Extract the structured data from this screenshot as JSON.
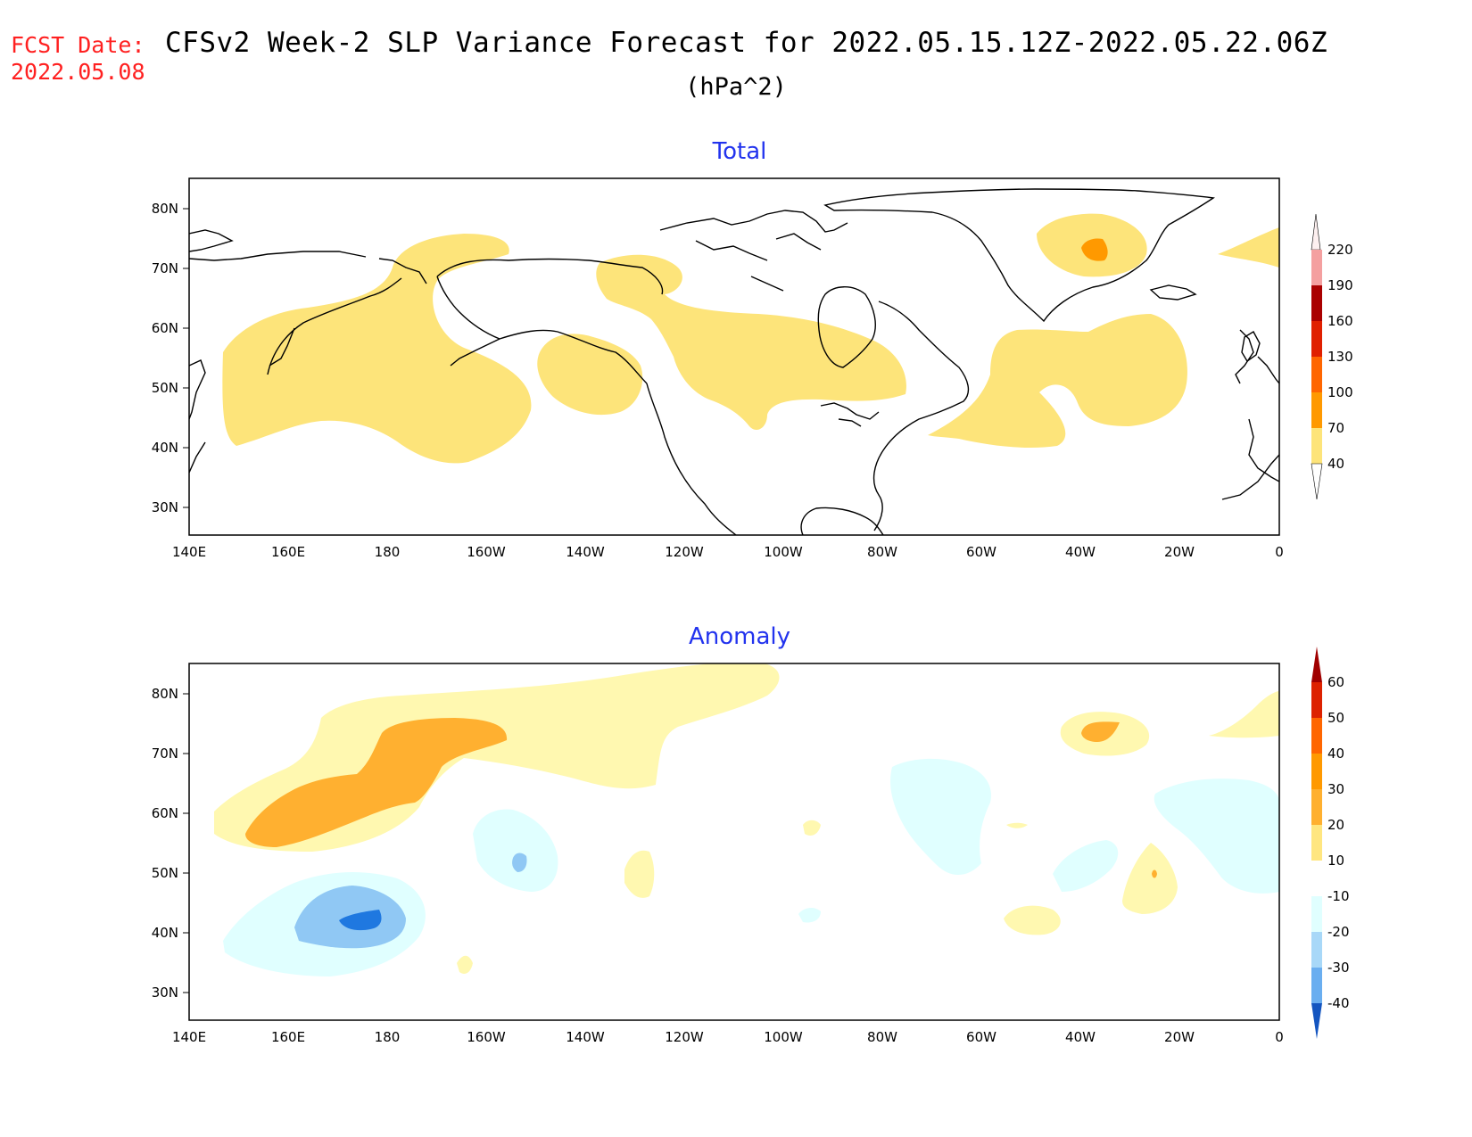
{
  "header": {
    "fcst_label": "FCST Date:",
    "fcst_date": "2022.05.08",
    "title": "CFSv2 Week-2 SLP Variance Forecast for 2022.05.15.12Z-2022.05.22.06Z",
    "units": "(hPa^2)"
  },
  "axes": {
    "lat_ticks": [
      "80N",
      "70N",
      "60N",
      "50N",
      "40N",
      "30N"
    ],
    "lon_ticks": [
      "140E",
      "160E",
      "180",
      "160W",
      "140W",
      "120W",
      "100W",
      "80W",
      "60W",
      "40W",
      "20W",
      "0"
    ]
  },
  "panels": [
    {
      "title": "Total",
      "colorbar": {
        "labels": [
          "220",
          "190",
          "160",
          "130",
          "100",
          "70",
          "40"
        ],
        "colors": [
          "#fbe0e0",
          "#f4a0a0",
          "#aa0000",
          "#e02000",
          "#ff6600",
          "#ff9900",
          "#fde47a"
        ]
      },
      "shading": [
        {
          "level": "40-70",
          "color": "#fde47a"
        },
        {
          "level": "70-100",
          "color": "#ff9900"
        }
      ]
    },
    {
      "title": "Anomaly",
      "colorbar": {
        "labels": [
          "60",
          "50",
          "40",
          "30",
          "20",
          "10",
          "-10",
          "-20",
          "-30",
          "-40"
        ],
        "colors": [
          "#a00000",
          "#dd2200",
          "#ff6600",
          "#ff9900",
          "#ffb030",
          "#ffe680",
          "#fff8c0",
          "#ffffff",
          "#e0ffff",
          "#a8d8f8",
          "#6aaef0",
          "#1f78e0",
          "#1455c0"
        ]
      },
      "shading": [
        {
          "level": "10-20",
          "color": "#fff8b0"
        },
        {
          "level": "20-30",
          "color": "#ffb030"
        },
        {
          "level": "-10 to -20",
          "color": "#e0ffff"
        },
        {
          "level": "-20 to -30",
          "color": "#90c8f4"
        },
        {
          "level": "-30 to -40",
          "color": "#1f78e0"
        }
      ]
    }
  ]
}
